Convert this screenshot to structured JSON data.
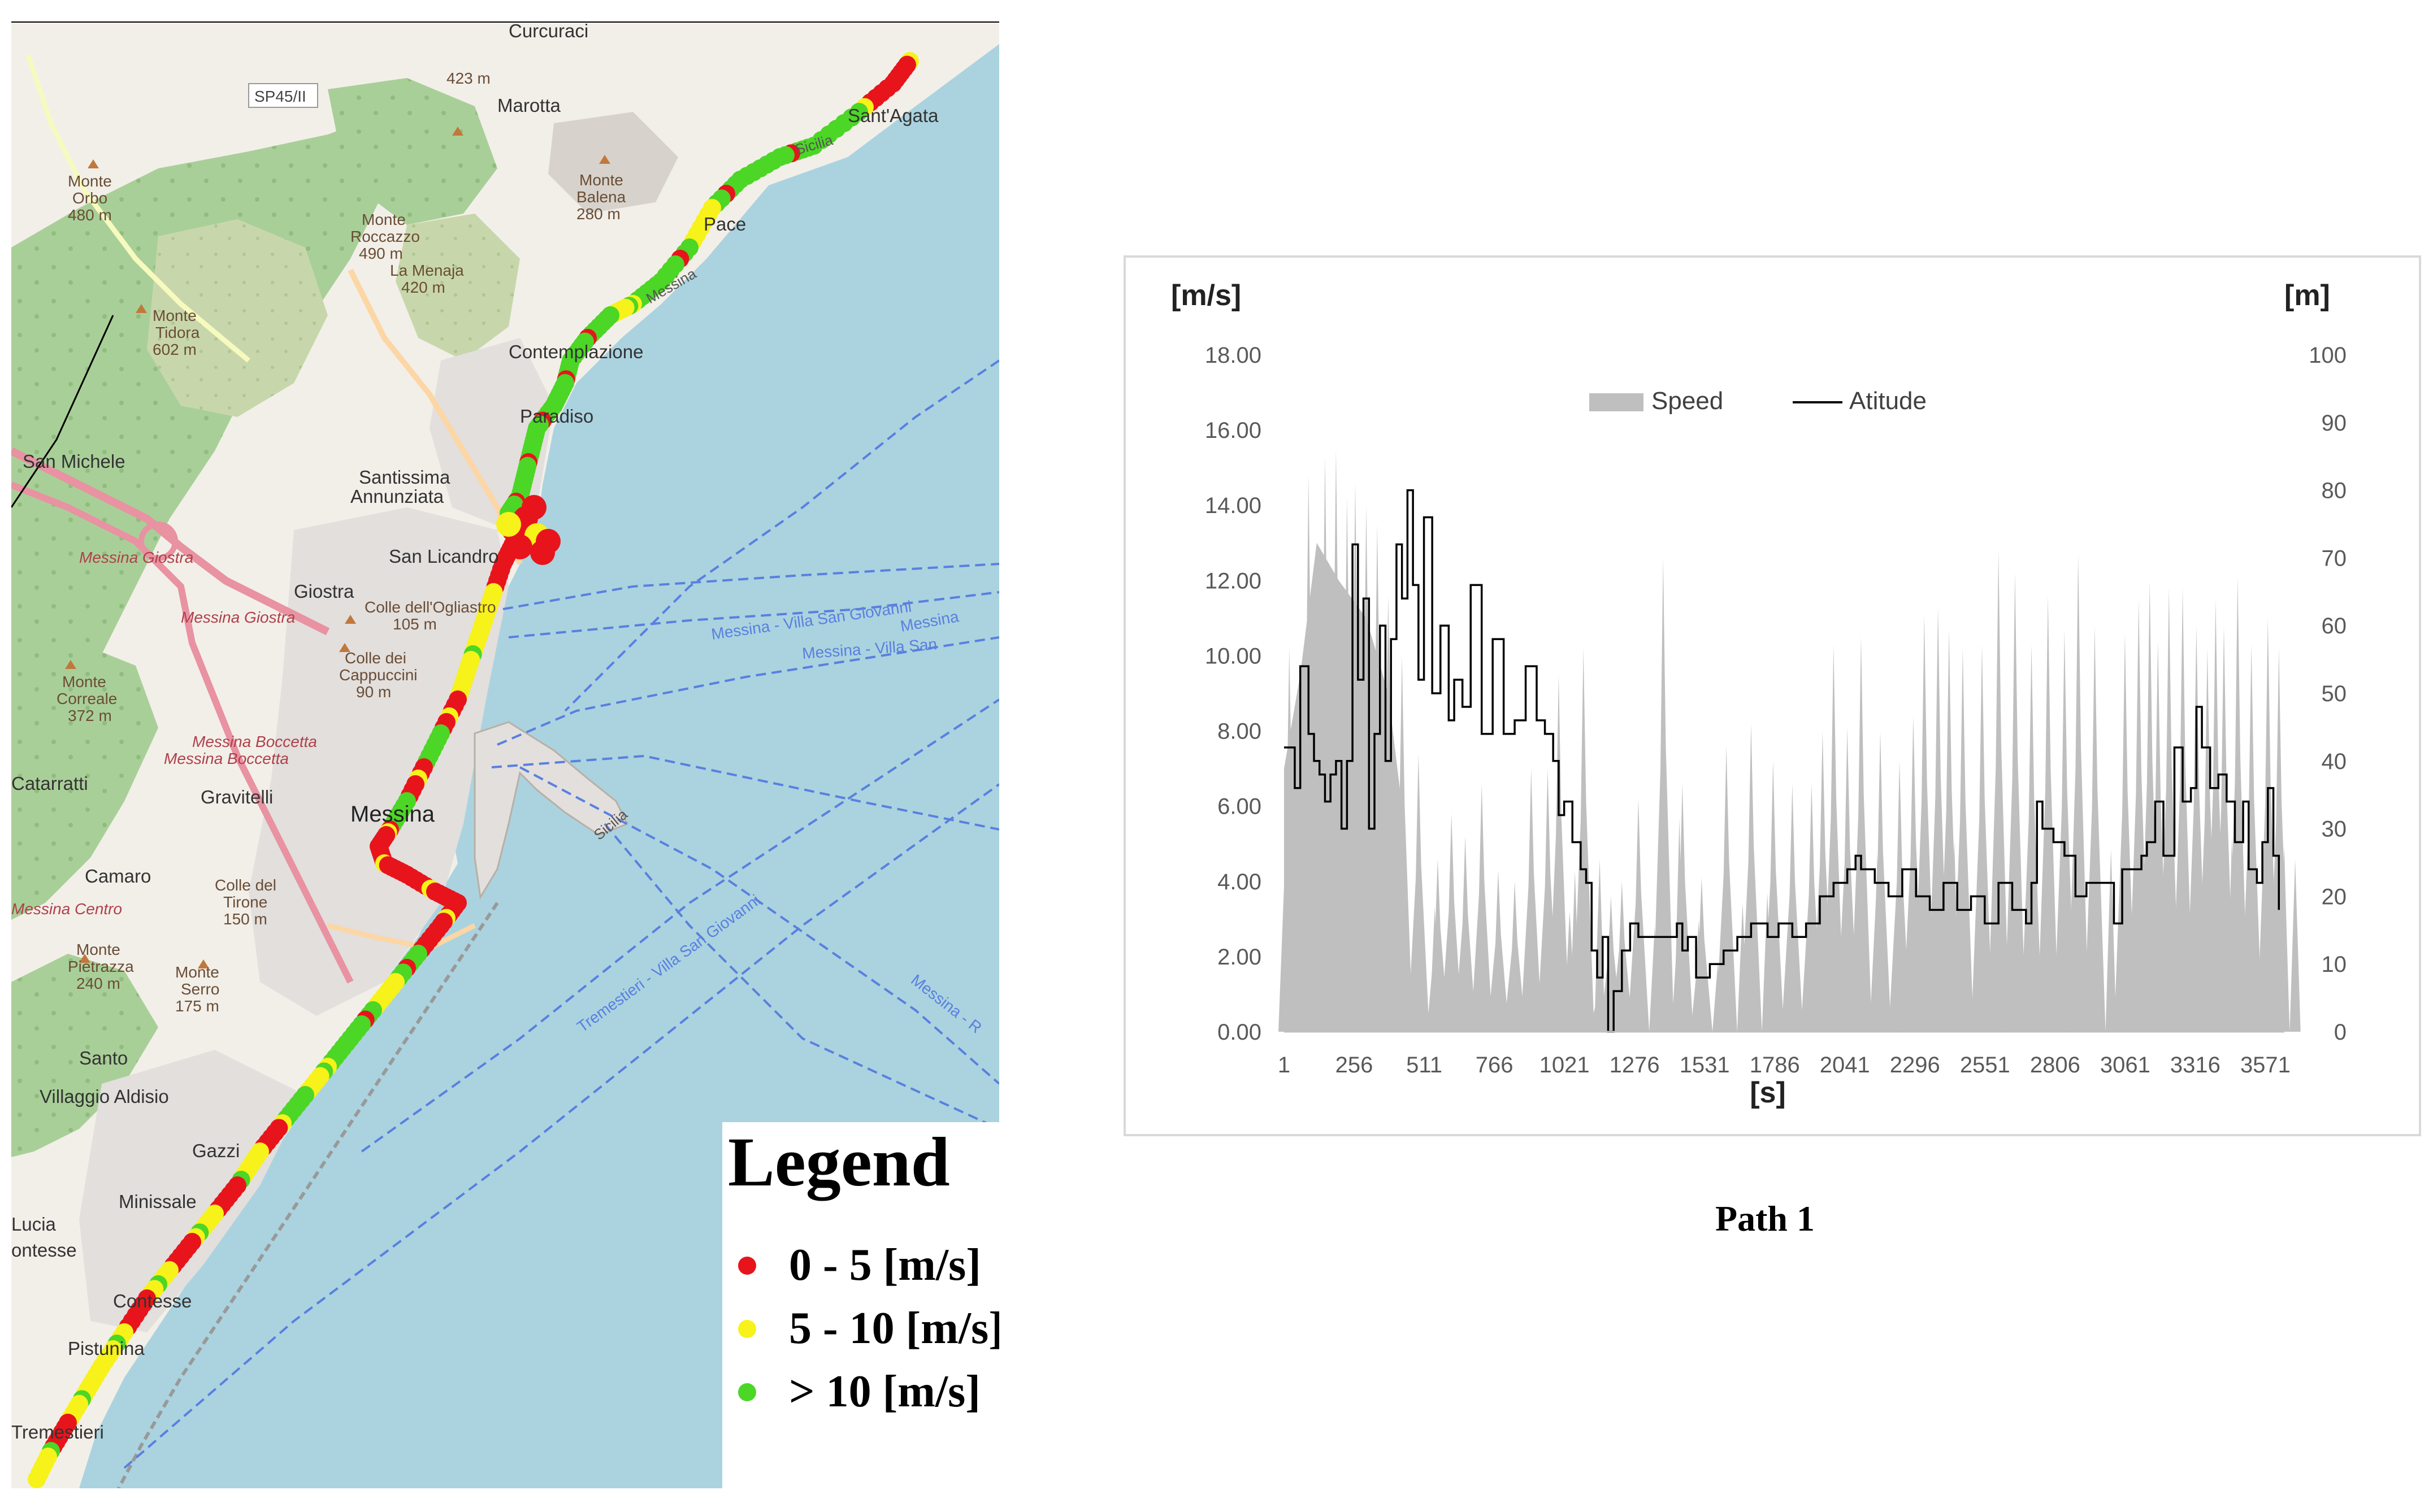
{
  "map": {
    "place_labels": [
      {
        "text": "Curcuraci",
        "type": "place"
      },
      {
        "text": "423 m",
        "type": "peak"
      },
      {
        "text": "SP45/II",
        "type": "road-shield"
      },
      {
        "text": "Marotta",
        "type": "place"
      },
      {
        "text": "Sant'Agata",
        "type": "place"
      },
      {
        "text": "Monte",
        "type": "peak"
      },
      {
        "text": "Orbo",
        "type": "peak"
      },
      {
        "text": "480 m",
        "type": "peak"
      },
      {
        "text": "Monte",
        "type": "peak"
      },
      {
        "text": "Balena",
        "type": "peak"
      },
      {
        "text": "280 m",
        "type": "peak"
      },
      {
        "text": "Monte",
        "type": "peak"
      },
      {
        "text": "Roccazzo",
        "type": "peak"
      },
      {
        "text": "490 m",
        "type": "peak"
      },
      {
        "text": "La Menaja",
        "type": "peak"
      },
      {
        "text": "420 m",
        "type": "peak"
      },
      {
        "text": "Pace",
        "type": "place"
      },
      {
        "text": "Monte",
        "type": "peak"
      },
      {
        "text": "Tidora",
        "type": "peak"
      },
      {
        "text": "602 m",
        "type": "peak"
      },
      {
        "text": "Contemplazione",
        "type": "place"
      },
      {
        "text": "Paradiso",
        "type": "place"
      },
      {
        "text": "San Michele",
        "type": "place"
      },
      {
        "text": "Santissima",
        "type": "place"
      },
      {
        "text": "Annunziata",
        "type": "place"
      },
      {
        "text": "Messina Giostra",
        "type": "exit"
      },
      {
        "text": "San Licandro",
        "type": "place"
      },
      {
        "text": "Giostra",
        "type": "place"
      },
      {
        "text": "Colle dell'Ogliastro",
        "type": "peak"
      },
      {
        "text": "105 m",
        "type": "peak"
      },
      {
        "text": "Messina Giostra",
        "type": "exit"
      },
      {
        "text": "Colle dei",
        "type": "peak"
      },
      {
        "text": "Cappuccini",
        "type": "peak"
      },
      {
        "text": "90 m",
        "type": "peak"
      },
      {
        "text": "Monte",
        "type": "peak"
      },
      {
        "text": "Correale",
        "type": "peak"
      },
      {
        "text": "372 m",
        "type": "peak"
      },
      {
        "text": "Messina Boccetta",
        "type": "exit"
      },
      {
        "text": "Messina Boccetta",
        "type": "exit"
      },
      {
        "text": "Catarratti",
        "type": "place"
      },
      {
        "text": "Gravitelli",
        "type": "place"
      },
      {
        "text": "Messina",
        "type": "city"
      },
      {
        "text": "Camaro",
        "type": "place"
      },
      {
        "text": "Colle del",
        "type": "peak"
      },
      {
        "text": "Tirone",
        "type": "peak"
      },
      {
        "text": "150 m",
        "type": "peak"
      },
      {
        "text": "Messina Centro",
        "type": "exit"
      },
      {
        "text": "Monte",
        "type": "peak"
      },
      {
        "text": "Pietrazza",
        "type": "peak"
      },
      {
        "text": "240 m",
        "type": "peak"
      },
      {
        "text": "Monte",
        "type": "peak"
      },
      {
        "text": "Serro",
        "type": "peak"
      },
      {
        "text": "175 m",
        "type": "peak"
      },
      {
        "text": "Santo",
        "type": "place"
      },
      {
        "text": "Villaggio Aldisio",
        "type": "place"
      },
      {
        "text": "Gazzi",
        "type": "place"
      },
      {
        "text": "Minissale",
        "type": "place"
      },
      {
        "text": "Lucia",
        "type": "place"
      },
      {
        "text": "ontesse",
        "type": "place"
      },
      {
        "text": "Contesse",
        "type": "place"
      },
      {
        "text": "Pistunina",
        "type": "place"
      },
      {
        "text": "Tremestieri",
        "type": "place"
      },
      {
        "text": "Messina - Villa San Giovanni",
        "type": "ferry"
      },
      {
        "text": "Messina",
        "type": "ferry"
      },
      {
        "text": "Messina - Villa San",
        "type": "ferry"
      },
      {
        "text": "Tremestieri - Villa San Giovanni",
        "type": "ferry"
      },
      {
        "text": "Messina - R",
        "type": "ferry"
      },
      {
        "text": "Sicilia",
        "type": "road"
      },
      {
        "text": "Sicilia",
        "type": "road"
      },
      {
        "text": "Messina",
        "type": "road"
      }
    ],
    "legend": {
      "title": "Legend",
      "items": [
        {
          "label": "0 - 5 [m/s]",
          "color": "#e8141c"
        },
        {
          "label": "5 - 10 [m/s]",
          "color": "#f7f21a"
        },
        {
          "label": "> 10 [m/s]",
          "color": "#4cd626"
        }
      ]
    },
    "colors": {
      "sea": "#aad3df",
      "land": "#f2efe9",
      "forest": "#add19e",
      "urban": "#e0dfdf",
      "motorway": "#e892a2",
      "primary": "#fcd6a4",
      "ferry": "#5a7fe0"
    }
  },
  "chart_data": {
    "type": "area+line",
    "left_axis_unit": "[m/s]",
    "right_axis_unit": "[m]",
    "xlabel": "[s]",
    "left_ticks": [
      "0.00",
      "2.00",
      "4.00",
      "6.00",
      "8.00",
      "10.00",
      "12.00",
      "14.00",
      "16.00",
      "18.00"
    ],
    "right_ticks": [
      "0",
      "10",
      "20",
      "30",
      "40",
      "50",
      "60",
      "70",
      "80",
      "90",
      "100"
    ],
    "x_ticks": [
      "1",
      "256",
      "511",
      "766",
      "1021",
      "1276",
      "1531",
      "1786",
      "2041",
      "2296",
      "2551",
      "2806",
      "3061",
      "3316",
      "3571"
    ],
    "ylim_left": [
      0,
      18
    ],
    "ylim_right": [
      0,
      100
    ],
    "xlim": [
      1,
      3640
    ],
    "series": [
      {
        "name": "Speed",
        "axis": "left",
        "style": "area",
        "color": "#bfbfbf",
        "peaks": [
          {
            "x": 20,
            "y": 10.2
          },
          {
            "x": 90,
            "y": 14.8
          },
          {
            "x": 150,
            "y": 15.3
          },
          {
            "x": 190,
            "y": 15.5
          },
          {
            "x": 230,
            "y": 14.2
          },
          {
            "x": 260,
            "y": 14.6
          },
          {
            "x": 300,
            "y": 14.0
          },
          {
            "x": 340,
            "y": 13.5
          },
          {
            "x": 380,
            "y": 11.6
          },
          {
            "x": 430,
            "y": 10.0
          },
          {
            "x": 490,
            "y": 7.4
          },
          {
            "x": 560,
            "y": 4.6
          },
          {
            "x": 610,
            "y": 5.8
          },
          {
            "x": 660,
            "y": 5.2
          },
          {
            "x": 720,
            "y": 6.6
          },
          {
            "x": 780,
            "y": 4.3
          },
          {
            "x": 840,
            "y": 4.0
          },
          {
            "x": 900,
            "y": 7.0
          },
          {
            "x": 960,
            "y": 7.0
          },
          {
            "x": 1000,
            "y": 9.5
          },
          {
            "x": 1040,
            "y": 3.2
          },
          {
            "x": 1090,
            "y": 10.2
          },
          {
            "x": 1150,
            "y": 1.6
          },
          {
            "x": 1190,
            "y": 3.6
          },
          {
            "x": 1230,
            "y": 4.0
          },
          {
            "x": 1290,
            "y": 6.2
          },
          {
            "x": 1380,
            "y": 12.6
          },
          {
            "x": 1450,
            "y": 6.6
          },
          {
            "x": 1520,
            "y": 4.1
          },
          {
            "x": 1610,
            "y": 7.6
          },
          {
            "x": 1700,
            "y": 8.2
          },
          {
            "x": 1780,
            "y": 7.2
          },
          {
            "x": 1850,
            "y": 6.6
          },
          {
            "x": 1920,
            "y": 6.6
          },
          {
            "x": 1960,
            "y": 8.0
          },
          {
            "x": 2000,
            "y": 10.3
          },
          {
            "x": 2050,
            "y": 8.1
          },
          {
            "x": 2100,
            "y": 10.5
          },
          {
            "x": 2170,
            "y": 8.0
          },
          {
            "x": 2240,
            "y": 7.2
          },
          {
            "x": 2290,
            "y": 8.4
          },
          {
            "x": 2330,
            "y": 11.1
          },
          {
            "x": 2380,
            "y": 11.3
          },
          {
            "x": 2420,
            "y": 10.7
          },
          {
            "x": 2470,
            "y": 10.2
          },
          {
            "x": 2540,
            "y": 10.3
          },
          {
            "x": 2600,
            "y": 12.8
          },
          {
            "x": 2660,
            "y": 12.2
          },
          {
            "x": 2720,
            "y": 10.3
          },
          {
            "x": 2780,
            "y": 11.6
          },
          {
            "x": 2840,
            "y": 10.7
          },
          {
            "x": 2890,
            "y": 12.7
          },
          {
            "x": 2950,
            "y": 10.8
          },
          {
            "x": 3010,
            "y": 0.0
          },
          {
            "x": 3060,
            "y": 10.6
          },
          {
            "x": 3110,
            "y": 11.5
          },
          {
            "x": 3150,
            "y": 12.0
          },
          {
            "x": 3180,
            "y": 10.4
          },
          {
            "x": 3220,
            "y": 11.8
          },
          {
            "x": 3270,
            "y": 11.8
          },
          {
            "x": 3320,
            "y": 10.8
          },
          {
            "x": 3360,
            "y": 10.2
          },
          {
            "x": 3390,
            "y": 11.5
          },
          {
            "x": 3420,
            "y": 10.8
          },
          {
            "x": 3470,
            "y": 12.1
          },
          {
            "x": 3520,
            "y": 10.3
          },
          {
            "x": 3580,
            "y": 11.0
          },
          {
            "x": 3620,
            "y": 10.2
          }
        ]
      },
      {
        "name": "Atitude",
        "axis": "right",
        "style": "line",
        "color": "#000000",
        "points": [
          [
            1,
            42
          ],
          [
            40,
            36
          ],
          [
            60,
            54
          ],
          [
            90,
            44
          ],
          [
            110,
            40
          ],
          [
            130,
            38
          ],
          [
            150,
            34
          ],
          [
            170,
            38
          ],
          [
            190,
            40
          ],
          [
            210,
            30
          ],
          [
            230,
            40
          ],
          [
            250,
            72
          ],
          [
            270,
            52
          ],
          [
            290,
            64
          ],
          [
            310,
            30
          ],
          [
            330,
            44
          ],
          [
            350,
            60
          ],
          [
            370,
            40
          ],
          [
            390,
            58
          ],
          [
            410,
            72
          ],
          [
            430,
            64
          ],
          [
            450,
            80
          ],
          [
            470,
            66
          ],
          [
            490,
            52
          ],
          [
            510,
            76
          ],
          [
            540,
            50
          ],
          [
            570,
            60
          ],
          [
            600,
            46
          ],
          [
            620,
            52
          ],
          [
            650,
            48
          ],
          [
            680,
            66
          ],
          [
            720,
            44
          ],
          [
            760,
            58
          ],
          [
            800,
            44
          ],
          [
            840,
            46
          ],
          [
            880,
            54
          ],
          [
            920,
            46
          ],
          [
            950,
            44
          ],
          [
            980,
            40
          ],
          [
            1000,
            32
          ],
          [
            1020,
            34
          ],
          [
            1050,
            28
          ],
          [
            1080,
            24
          ],
          [
            1100,
            22
          ],
          [
            1120,
            12
          ],
          [
            1140,
            8
          ],
          [
            1160,
            14
          ],
          [
            1180,
            0
          ],
          [
            1200,
            6
          ],
          [
            1230,
            12
          ],
          [
            1260,
            16
          ],
          [
            1290,
            14
          ],
          [
            1320,
            14
          ],
          [
            1350,
            14
          ],
          [
            1400,
            14
          ],
          [
            1430,
            16
          ],
          [
            1450,
            12
          ],
          [
            1470,
            14
          ],
          [
            1500,
            8
          ],
          [
            1550,
            10
          ],
          [
            1600,
            12
          ],
          [
            1650,
            14
          ],
          [
            1700,
            16
          ],
          [
            1760,
            14
          ],
          [
            1800,
            16
          ],
          [
            1850,
            14
          ],
          [
            1900,
            16
          ],
          [
            1950,
            20
          ],
          [
            2000,
            22
          ],
          [
            2050,
            24
          ],
          [
            2080,
            26
          ],
          [
            2100,
            24
          ],
          [
            2150,
            22
          ],
          [
            2200,
            20
          ],
          [
            2250,
            24
          ],
          [
            2300,
            20
          ],
          [
            2350,
            18
          ],
          [
            2400,
            22
          ],
          [
            2450,
            18
          ],
          [
            2500,
            20
          ],
          [
            2550,
            16
          ],
          [
            2600,
            22
          ],
          [
            2650,
            18
          ],
          [
            2700,
            16
          ],
          [
            2720,
            22
          ],
          [
            2740,
            34
          ],
          [
            2760,
            30
          ],
          [
            2800,
            28
          ],
          [
            2840,
            26
          ],
          [
            2880,
            20
          ],
          [
            2920,
            22
          ],
          [
            2980,
            22
          ],
          [
            3020,
            16
          ],
          [
            3050,
            24
          ],
          [
            3080,
            24
          ],
          [
            3120,
            26
          ],
          [
            3140,
            28
          ],
          [
            3170,
            34
          ],
          [
            3200,
            26
          ],
          [
            3240,
            42
          ],
          [
            3270,
            34
          ],
          [
            3300,
            36
          ],
          [
            3320,
            48
          ],
          [
            3340,
            42
          ],
          [
            3370,
            36
          ],
          [
            3400,
            38
          ],
          [
            3430,
            34
          ],
          [
            3460,
            28
          ],
          [
            3490,
            34
          ],
          [
            3510,
            24
          ],
          [
            3540,
            22
          ],
          [
            3560,
            28
          ],
          [
            3580,
            36
          ],
          [
            3600,
            26
          ],
          [
            3620,
            18
          ]
        ]
      }
    ],
    "legend_position": "top-center"
  },
  "caption": "Path 1"
}
